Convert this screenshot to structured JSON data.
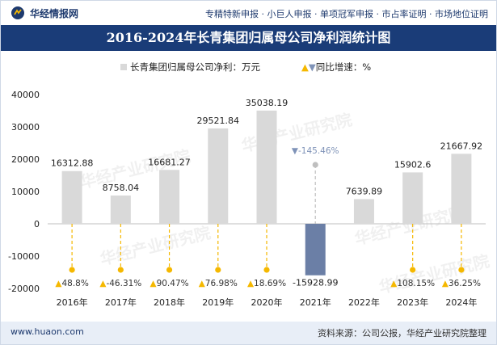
{
  "header": {
    "logo_text": "华经情报网",
    "services": [
      "专精特新申报",
      "小巨人申报",
      "单项冠军申报",
      "市占率证明",
      "市场地位证明"
    ]
  },
  "title": "2016-2024年长青集团归属母公司净利润统计图",
  "legend": {
    "bar_label": "长青集团归属母公司净利：万元",
    "growth_label": "同比增速：%"
  },
  "watermark": "华经产业研究院",
  "footer": {
    "website": "www.huaon.com",
    "source": "资料来源：公司公报，华经产业研究院整理"
  },
  "colors": {
    "bar": "#d9d9d9",
    "negative_bar": "#6b7fa6",
    "growth_up": "#f5b800",
    "growth_down": "#7f93b8",
    "title_bg": "#1a3c78"
  },
  "chart_data": {
    "type": "bar",
    "categories": [
      "2016年",
      "2017年",
      "2018年",
      "2019年",
      "2020年",
      "2021年",
      "2022年",
      "2023年",
      "2024年"
    ],
    "series": [
      {
        "name": "长青集团归属母公司净利：万元",
        "values": [
          16312.88,
          8758.04,
          16681.27,
          29521.84,
          35038.19,
          -15928.99,
          7639.89,
          15902.6,
          21667.92
        ],
        "labels": [
          "16312.88",
          "8758.04",
          "16681.27",
          "29521.84",
          "35038.19",
          "-15928.99",
          "7639.89",
          "15902.6",
          "21667.92"
        ]
      },
      {
        "name": "同比增速：%",
        "values": [
          48.8,
          -46.31,
          90.47,
          76.98,
          18.69,
          -145.46,
          null,
          108.15,
          36.25
        ],
        "labels": [
          "48.8%",
          "-46.31%",
          "90.47%",
          "76.98%",
          "18.69%",
          "-145.46%",
          "",
          "108.15%",
          "36.25%"
        ]
      }
    ],
    "ylim": [
      -20000,
      40000
    ],
    "yticks": [
      40000,
      30000,
      20000,
      10000,
      0,
      -10000,
      -20000
    ],
    "ytick_labels": [
      "40000",
      "30000",
      "20000",
      "10000",
      "0",
      "-10000",
      "-20000"
    ]
  }
}
